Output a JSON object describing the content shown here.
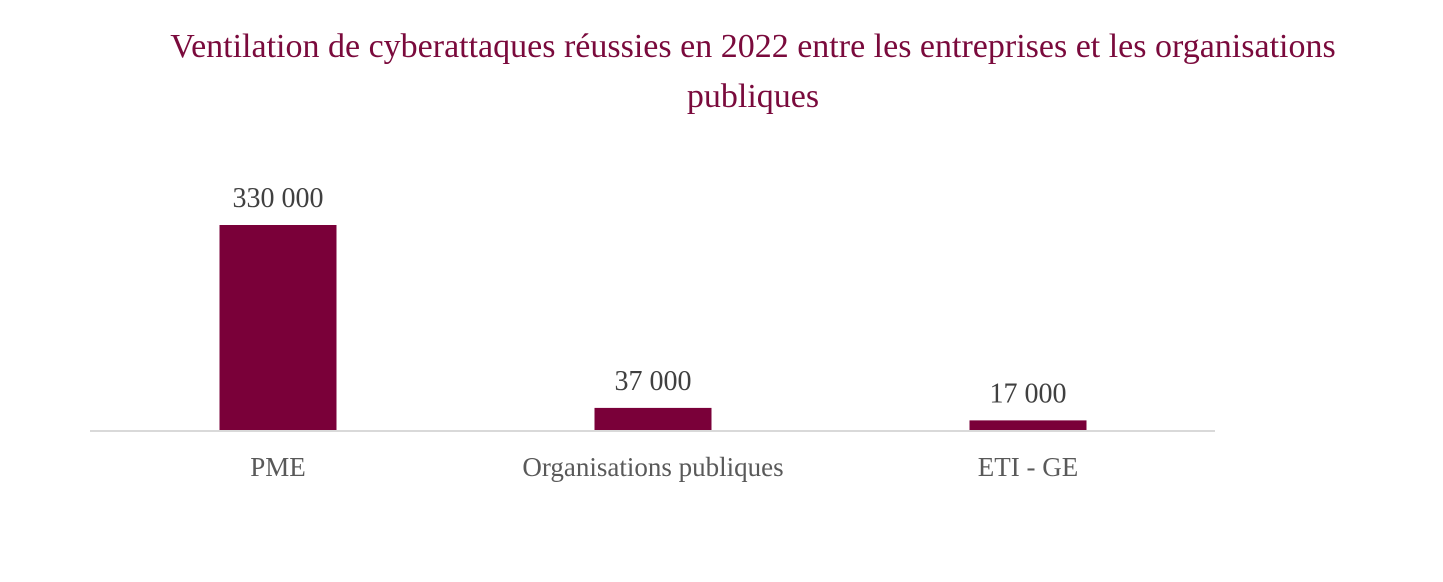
{
  "chart_data": {
    "type": "bar",
    "title": "Ventilation de cyberattaques réussies en 2022 entre les entreprises et les organisations publiques",
    "categories": [
      "PME",
      "Organisations publiques",
      "ETI - GE"
    ],
    "values": [
      330000,
      37000,
      17000
    ],
    "value_labels": [
      "330 000",
      "37 000",
      "17 000"
    ],
    "xlabel": "",
    "ylabel": "",
    "ylim": [
      0,
      330000
    ],
    "grid": false,
    "legend": "none"
  },
  "colors": {
    "bar": "#7a0039",
    "title": "#7a0a3c",
    "axis": "#d9d9d9",
    "data_label": "#404040",
    "category_label": "#595959"
  }
}
